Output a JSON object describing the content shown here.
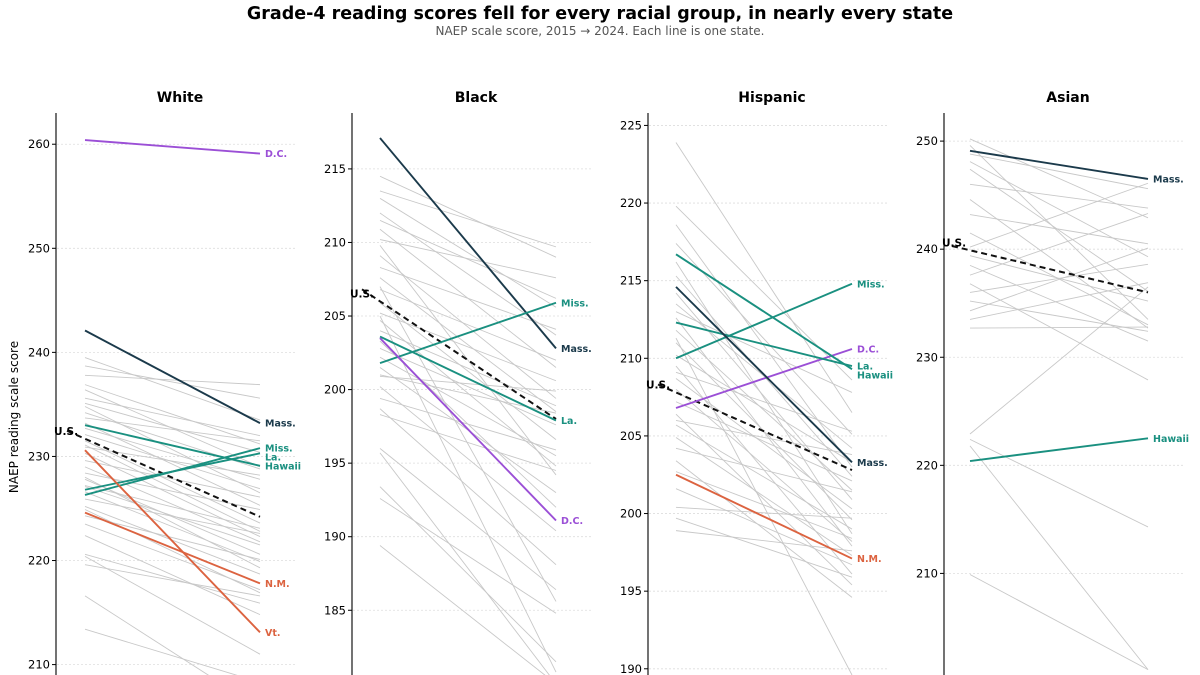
{
  "title": "Grade-4 reading scores fell for every racial group, in nearly every state",
  "subtitle": "NAEP scale score, 2015 → 2024.  Each line is one state.",
  "ylabel": "NAEP reading scale score",
  "colors": {
    "background_line": "#c8c8c8",
    "us": "#111111",
    "Mass.": "#1b3a4b",
    "Miss.": "#1a9080",
    "La.": "#1a9080",
    "Hawaii": "#1a9080",
    "D.C.": "#9b4fd6",
    "N.M.": "#dc6340",
    "Vt.": "#dc6340",
    "grid": "#dddddd"
  },
  "chart_data": [
    {
      "type": "line",
      "panel_title": "White",
      "x": [
        "2015",
        "2024"
      ],
      "ylim": [
        209,
        263
      ],
      "yticks": [
        210,
        220,
        230,
        240,
        250,
        260
      ],
      "highlighted": [
        {
          "name": "D.C.",
          "values": [
            260.4,
            259.1
          ]
        },
        {
          "name": "Mass.",
          "values": [
            242.1,
            233.2
          ]
        },
        {
          "name": "Miss.",
          "values": [
            226.3,
            230.8
          ]
        },
        {
          "name": "La.",
          "values": [
            226.8,
            230.3
          ]
        },
        {
          "name": "Hawaii",
          "values": [
            233.0,
            229.1
          ]
        },
        {
          "name": "N.M.",
          "values": [
            224.6,
            217.8
          ]
        },
        {
          "name": "Vt.",
          "values": [
            230.6,
            213.1
          ]
        }
      ],
      "us": {
        "name": "U.S.",
        "values": [
          231.7,
          224.2
        ]
      },
      "background": [
        [
          239.5,
          233.5
        ],
        [
          238.7,
          235.6
        ],
        [
          237.8,
          236.9
        ],
        [
          236.4,
          229.0
        ],
        [
          235.6,
          232.0
        ],
        [
          234.8,
          226.5
        ],
        [
          234.2,
          228.8
        ],
        [
          233.7,
          231.5
        ],
        [
          233.2,
          225.3
        ],
        [
          232.7,
          227.8
        ],
        [
          232.1,
          226.9
        ],
        [
          231.5,
          223.6
        ],
        [
          230.9,
          228.2
        ],
        [
          230.3,
          222.3
        ],
        [
          229.6,
          226.1
        ],
        [
          229.0,
          221.8
        ],
        [
          228.4,
          224.9
        ],
        [
          227.8,
          220.6
        ],
        [
          227.2,
          223.1
        ],
        [
          226.6,
          219.9
        ],
        [
          225.9,
          222.6
        ],
        [
          225.2,
          218.7
        ],
        [
          224.3,
          220.1
        ],
        [
          223.5,
          217.2
        ],
        [
          222.4,
          214.8
        ],
        [
          220.6,
          215.9
        ],
        [
          219.6,
          216.6
        ],
        [
          216.6,
          205.8
        ],
        [
          213.4,
          208.3
        ],
        [
          236.9,
          231.2
        ],
        [
          235.1,
          230.4
        ],
        [
          231.1,
          222.8
        ],
        [
          228.0,
          219.3
        ],
        [
          227.1,
          221.5
        ],
        [
          224.9,
          216.9
        ],
        [
          220.4,
          211.0
        ]
      ]
    },
    {
      "type": "line",
      "panel_title": "Black",
      "x": [
        "2015",
        "2024"
      ],
      "ylim": [
        180.6,
        218.8
      ],
      "yticks": [
        185,
        190,
        195,
        200,
        205,
        210,
        215
      ],
      "highlighted": [
        {
          "name": "Mass.",
          "values": [
            217.1,
            202.8
          ]
        },
        {
          "name": "Miss.",
          "values": [
            201.8,
            205.9
          ]
        },
        {
          "name": "La.",
          "values": [
            203.6,
            197.9
          ]
        },
        {
          "name": "D.C.",
          "values": [
            203.5,
            191.1
          ]
        }
      ],
      "us": {
        "name": "U.S.",
        "values": [
          206.0,
          198.0
        ]
      },
      "background": [
        [
          214.5,
          209.0
        ],
        [
          213.5,
          209.7
        ],
        [
          213.0,
          205.6
        ],
        [
          212.0,
          203.7
        ],
        [
          210.9,
          201.5
        ],
        [
          210.2,
          207.6
        ],
        [
          209.1,
          199.4
        ],
        [
          208.3,
          204.1
        ],
        [
          207.6,
          198.5
        ],
        [
          206.8,
          202.0
        ],
        [
          205.9,
          196.6
        ],
        [
          205.2,
          200.6
        ],
        [
          204.7,
          194.8
        ],
        [
          204.0,
          198.9
        ],
        [
          203.3,
          192.0
        ],
        [
          202.8,
          197.6
        ],
        [
          202.2,
          195.5
        ],
        [
          201.5,
          193.0
        ],
        [
          200.9,
          199.9
        ],
        [
          200.2,
          190.4
        ],
        [
          199.4,
          195.9
        ],
        [
          198.7,
          188.1
        ],
        [
          198.3,
          194.5
        ],
        [
          196.0,
          186.4
        ],
        [
          195.7,
          180.0
        ],
        [
          193.4,
          181.5
        ],
        [
          192.6,
          184.8
        ],
        [
          189.4,
          180.0
        ],
        [
          209.8,
          194.2
        ],
        [
          207.0,
          185.6
        ],
        [
          211.5,
          206.2
        ],
        [
          201.0,
          198.4
        ],
        [
          205.0,
          180.8
        ]
      ]
    },
    {
      "type": "line",
      "panel_title": "Hispanic",
      "x": [
        "2015",
        "2024"
      ],
      "ylim": [
        189.6,
        225.8
      ],
      "yticks": [
        190,
        195,
        200,
        205,
        210,
        215,
        220,
        225
      ],
      "highlighted": [
        {
          "name": "Miss.",
          "values": [
            210.0,
            214.8
          ]
        },
        {
          "name": "D.C.",
          "values": [
            206.8,
            210.6
          ]
        },
        {
          "name": "La.",
          "values": [
            212.3,
            209.5
          ]
        },
        {
          "name": "Hawaii",
          "values": [
            216.7,
            209.3
          ]
        },
        {
          "name": "Mass.",
          "values": [
            214.6,
            203.3
          ]
        },
        {
          "name": "N.M.",
          "values": [
            202.5,
            197.1
          ]
        }
      ],
      "us": {
        "name": "U.S.",
        "values": [
          207.8,
          202.8
        ]
      },
      "background": [
        [
          223.9,
          206.5
        ],
        [
          218.6,
          203.0
        ],
        [
          217.4,
          205.1
        ],
        [
          216.2,
          198.7
        ],
        [
          215.3,
          202.4
        ],
        [
          214.2,
          200.9
        ],
        [
          213.5,
          204.2
        ],
        [
          212.6,
          197.9
        ],
        [
          211.8,
          201.5
        ],
        [
          211.0,
          199.6
        ],
        [
          210.2,
          203.3
        ],
        [
          209.5,
          196.1
        ],
        [
          208.7,
          200.3
        ],
        [
          208.0,
          198.2
        ],
        [
          207.2,
          202.1
        ],
        [
          206.4,
          195.4
        ],
        [
          205.7,
          199.0
        ],
        [
          204.9,
          197.3
        ],
        [
          204.2,
          201.4
        ],
        [
          203.4,
          194.6
        ],
        [
          202.7,
          198.4
        ],
        [
          201.6,
          196.7
        ],
        [
          200.4,
          199.7
        ],
        [
          199.7,
          195.9
        ],
        [
          198.9,
          197.6
        ],
        [
          213.0,
          207.8
        ],
        [
          209.1,
          205.3
        ],
        [
          206.0,
          203.8
        ],
        [
          219.8,
          208.6
        ],
        [
          211.3,
          189.6
        ]
      ]
    },
    {
      "type": "line",
      "panel_title": "Asian",
      "x": [
        "2015",
        "2024"
      ],
      "ylim": [
        200.6,
        252.6
      ],
      "yticks": [
        210,
        220,
        230,
        240,
        250
      ],
      "highlighted": [
        {
          "name": "Mass.",
          "values": [
            249.1,
            246.5
          ]
        },
        {
          "name": "Hawaii",
          "values": [
            220.4,
            222.5
          ]
        }
      ],
      "us": {
        "name": "U.S.",
        "values": [
          239.9,
          236.0
        ]
      },
      "background": [
        [
          250.2,
          242.9
        ],
        [
          249.6,
          233.5
        ],
        [
          248.8,
          245.6
        ],
        [
          248.1,
          239.3
        ],
        [
          247.4,
          236.1
        ],
        [
          246.0,
          243.8
        ],
        [
          244.6,
          232.7
        ],
        [
          243.2,
          240.5
        ],
        [
          241.5,
          233.0
        ],
        [
          240.2,
          246.1
        ],
        [
          239.4,
          235.2
        ],
        [
          238.5,
          231.5
        ],
        [
          237.6,
          243.3
        ],
        [
          236.8,
          227.9
        ],
        [
          236.0,
          238.6
        ],
        [
          235.2,
          232.4
        ],
        [
          234.3,
          240.1
        ],
        [
          233.5,
          236.9
        ],
        [
          232.7,
          232.8
        ],
        [
          222.9,
          236.5
        ],
        [
          222.4,
          214.3
        ],
        [
          221.8,
          201.1
        ],
        [
          209.9,
          201.1
        ]
      ]
    }
  ]
}
